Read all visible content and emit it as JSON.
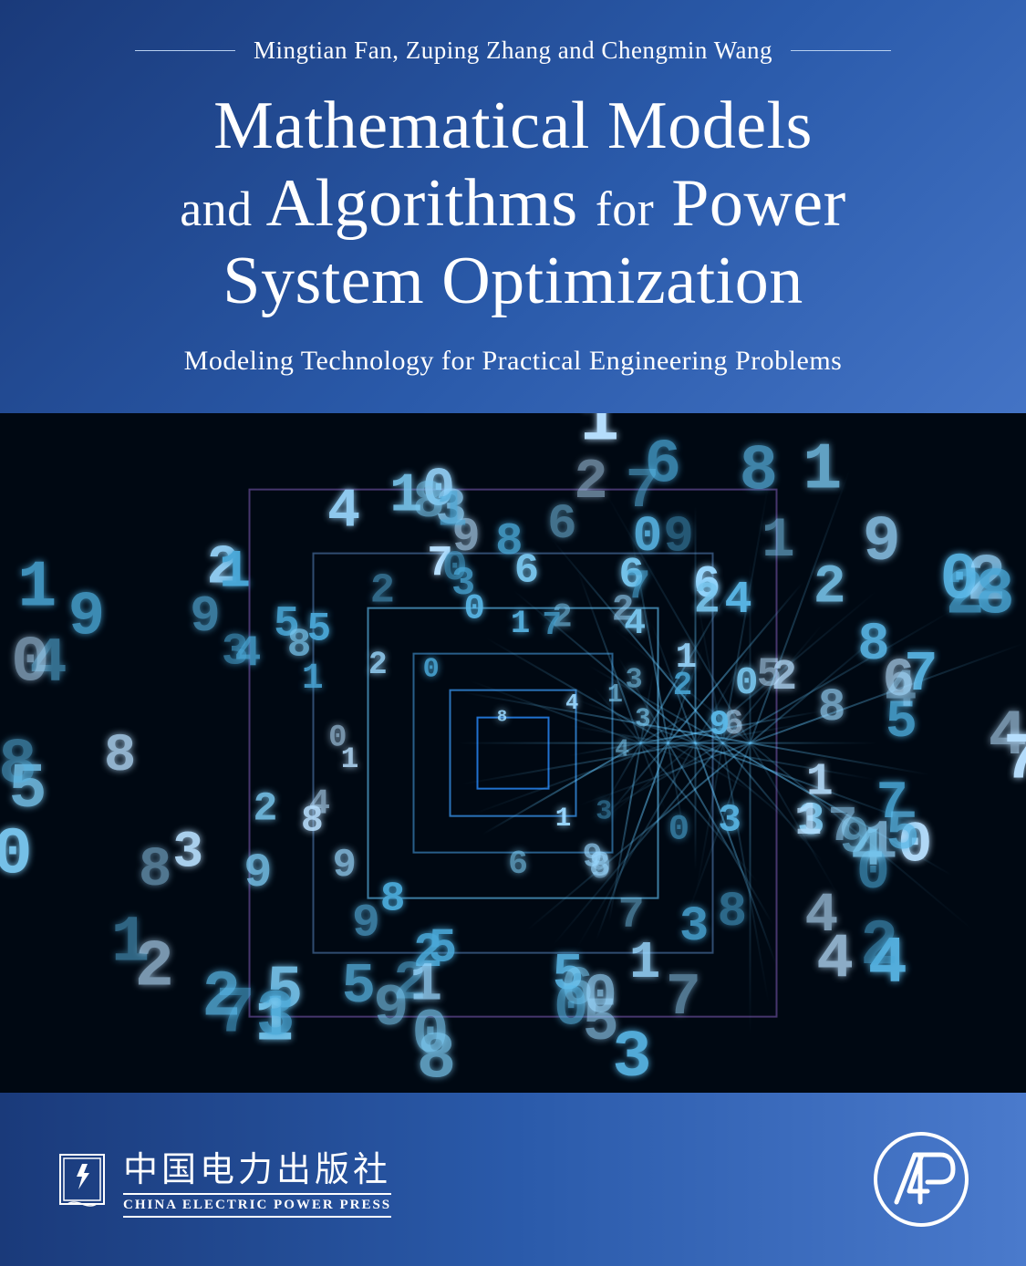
{
  "cover": {
    "authors": "Mingtian Fan, Zuping Zhang and Chengmin Wang",
    "title_line1_pre": "Mathematical Models",
    "title_line2_and": "and",
    "title_line2_mid": "Algorithms",
    "title_line2_for": "for",
    "title_line2_end": "Power",
    "title_line3": "System Optimization",
    "subtitle": "Modeling Technology for Practical Engineering Problems",
    "background_gradient": {
      "start": "#1a3a7a",
      "mid1": "#2a5aaa",
      "mid2": "#4a7acc",
      "end": "#6a9ae0"
    },
    "text_color": "#ffffff",
    "authors_fontsize": 27,
    "title_fontsize": 74,
    "title_small_fontsize": 54,
    "subtitle_fontsize": 30
  },
  "artwork": {
    "background": "#000812",
    "type": "digital-tunnel-infographic",
    "tunnel_frames": [
      {
        "size": 580,
        "color": "rgba(140,100,200,0.5)",
        "width": 2
      },
      {
        "size": 440,
        "color": "rgba(120,180,255,0.4)",
        "width": 2
      },
      {
        "size": 320,
        "color": "rgba(100,200,255,0.6)",
        "width": 2
      },
      {
        "size": 220,
        "color": "rgba(80,180,255,0.5)",
        "width": 2
      },
      {
        "size": 140,
        "color": "rgba(60,160,255,0.7)",
        "width": 2
      },
      {
        "size": 80,
        "color": "rgba(40,140,255,0.8)",
        "width": 2
      }
    ],
    "digit_colors": [
      "#5ab8e8",
      "#7ac8f0",
      "#4aa8d8",
      "#9ad8ff",
      "#b8e0ff"
    ],
    "digit_glyphs": [
      "0",
      "1",
      "2",
      "3",
      "4",
      "5",
      "6",
      "7",
      "8",
      "9"
    ],
    "digit_count": 140,
    "streak_count": 36,
    "streak_color": "rgba(100,200,255,0.7)"
  },
  "footer": {
    "publisher_left": {
      "chinese": "中国电力出版社",
      "english": "CHINA ELECTRIC POWER PRESS",
      "logo_stroke": "#ffffff"
    },
    "publisher_right": {
      "label": "AP",
      "logo_stroke": "#ffffff"
    },
    "background_gradient": {
      "start": "#1a3a7a",
      "mid": "#2a5aaa",
      "end": "#4a7acc"
    }
  }
}
